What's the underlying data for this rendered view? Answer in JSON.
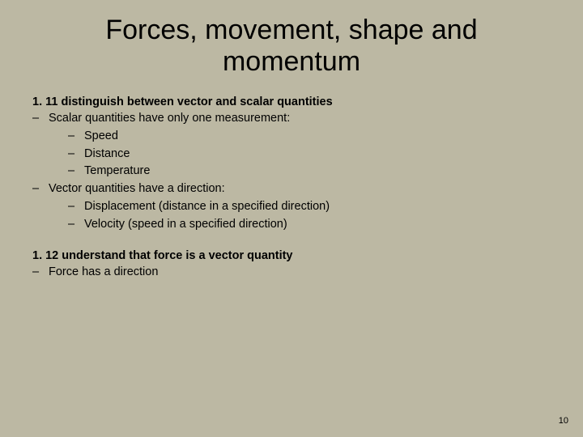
{
  "title": "Forces, movement, shape and momentum",
  "section1": {
    "heading": "1. 11 distinguish between vector and scalar quantities",
    "item1": "Scalar quantities have only one measurement:",
    "sub1a": "Speed",
    "sub1b": "Distance",
    "sub1c": "Temperature",
    "item2": "Vector quantities have a direction:",
    "sub2a": "Displacement (distance in a specified direction)",
    "sub2b": "Velocity (speed in a specified direction)"
  },
  "section2": {
    "heading": "1. 12 understand that force is a vector quantity",
    "item1": "Force has a direction"
  },
  "pageNumber": "10",
  "colors": {
    "background": "#bcb8a3",
    "text": "#000000"
  },
  "typography": {
    "title_fontsize": 34,
    "body_fontsize": 14.5,
    "page_fontsize": 11,
    "font_family": "Arial"
  }
}
